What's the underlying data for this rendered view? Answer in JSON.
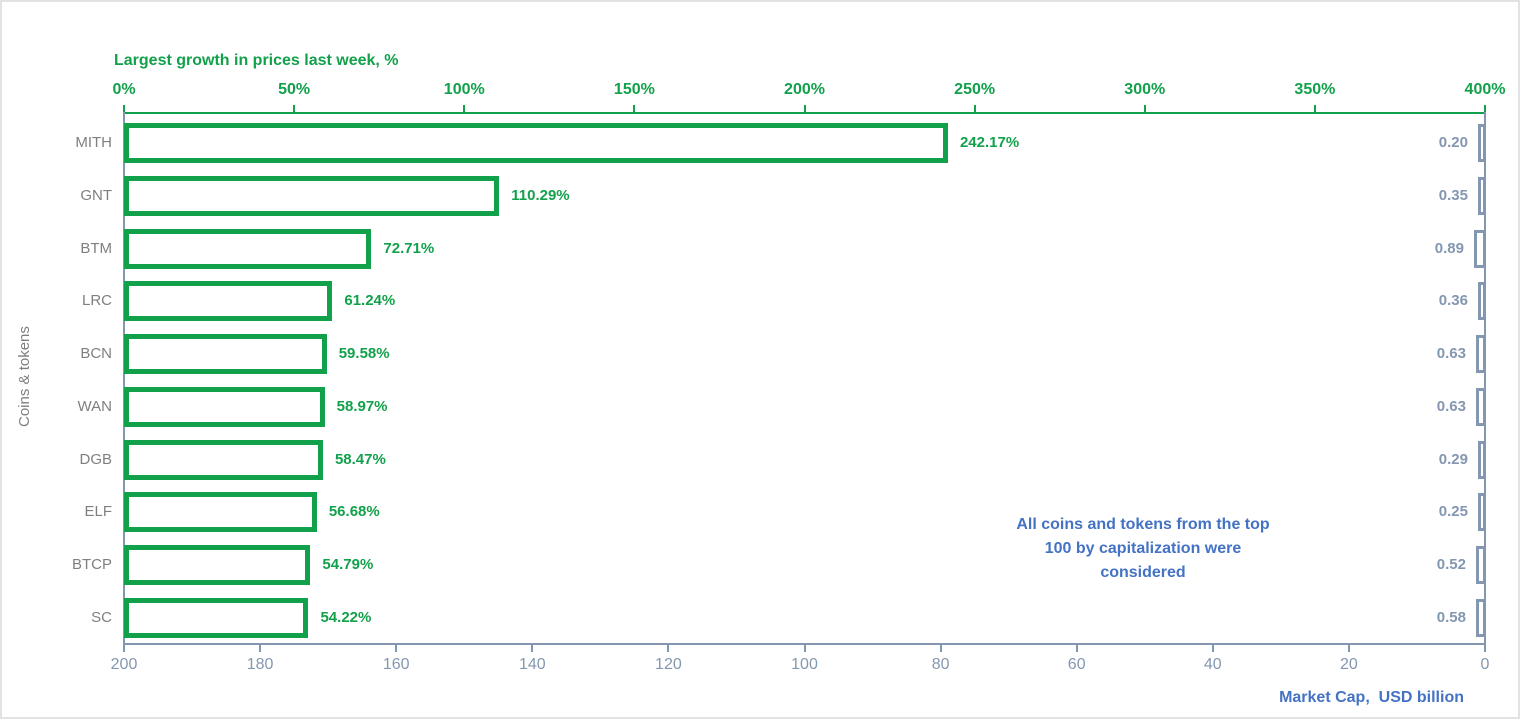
{
  "title": "Largest growth in prices last week, %",
  "y_axis_label": "Coins & tokens",
  "bottom_axis_label": "Market Cap,  USD billion",
  "annotation": "All coins and tokens from the top\n100 by capitalization were\nconsidered",
  "colors": {
    "green": "#12A14B",
    "gray_blue": "#8497B0",
    "blue": "#4472C4",
    "category_gray": "#7F7F7F",
    "frame": "#E2E2E2"
  },
  "chart_data": {
    "type": "bar",
    "orientation": "horizontal",
    "title": "Largest growth in prices last week, %",
    "categories": [
      "MITH",
      "GNT",
      "BTM",
      "LRC",
      "BCN",
      "WAN",
      "DGB",
      "ELF",
      "BTCP",
      "SC"
    ],
    "series": [
      {
        "name": "Largest growth in prices last week, %",
        "axis": "top",
        "unit": "%",
        "xlim": [
          0,
          400
        ],
        "values": [
          242.17,
          110.29,
          72.71,
          61.24,
          59.58,
          58.97,
          58.47,
          56.68,
          54.79,
          54.22
        ],
        "labels": [
          "242.17%",
          "110.29%",
          "72.71%",
          "61.24%",
          "59.58%",
          "58.97%",
          "58.47%",
          "56.68%",
          "54.79%",
          "54.22%"
        ]
      },
      {
        "name": "Market Cap, USD billion",
        "axis": "bottom",
        "unit": "USD billion",
        "xlim": [
          200,
          0
        ],
        "reversed": true,
        "values": [
          0.2,
          0.35,
          0.89,
          0.36,
          0.63,
          0.63,
          0.29,
          0.25,
          0.52,
          0.58
        ],
        "labels": [
          "0.20",
          "0.35",
          "0.89",
          "0.36",
          "0.63",
          "0.63",
          "0.29",
          "0.25",
          "0.52",
          "0.58"
        ]
      }
    ],
    "top_axis_ticks": [
      "0%",
      "50%",
      "100%",
      "150%",
      "200%",
      "250%",
      "300%",
      "350%",
      "400%"
    ],
    "bottom_axis_ticks": [
      "200",
      "180",
      "160",
      "140",
      "120",
      "100",
      "80",
      "60",
      "40",
      "20",
      "0"
    ],
    "grid": false,
    "legend": "none"
  }
}
